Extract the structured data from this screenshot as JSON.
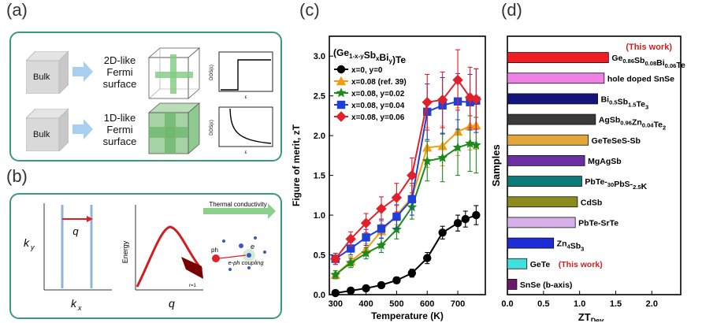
{
  "panels": {
    "a": {
      "label": "(a)",
      "row1": {
        "box": "Bulk",
        "desc1": "2D-like",
        "desc2": "Fermi",
        "desc3": "surface",
        "ylabel": "DOS(ε)",
        "xlabel": "ε"
      },
      "row2": {
        "box": "Bulk",
        "desc1": "1D-like",
        "desc2": "Fermi",
        "desc3": "surface",
        "ylabel": "DOS(ε)",
        "xlabel": "ε"
      }
    },
    "b": {
      "label": "(b)",
      "ky": "k",
      "ky_sub": "y",
      "kx": "k",
      "kx_sub": "x",
      "q1": "q",
      "q2": "q",
      "energy": "Energy",
      "thermal": "Thermal conductivity",
      "ph": "ph",
      "e": "e",
      "coupling": "e-ph coupling",
      "r": "r=1"
    },
    "c": {
      "label": "(c)"
    },
    "d": {
      "label": "(d)"
    }
  },
  "chart_data": [
    {
      "type": "line",
      "title": "(Ge1-x-ySbxBiy)Te",
      "xlabel": "Temperature (K)",
      "ylabel": "Figure of merit, zT",
      "xlim": [
        280,
        790
      ],
      "ylim": [
        0,
        3.25
      ],
      "xticks": [
        300,
        400,
        500,
        600,
        700,
        800
      ],
      "yticks": [
        0.0,
        0.5,
        1.0,
        1.5,
        2.0,
        2.5,
        3.0
      ],
      "legend_position": "top-left",
      "series": [
        {
          "name": "x=0, y=0",
          "color": "#000000",
          "marker": "circle",
          "x": [
            300,
            350,
            400,
            450,
            500,
            550,
            600,
            650,
            700,
            725,
            760
          ],
          "y": [
            0.02,
            0.05,
            0.08,
            0.12,
            0.18,
            0.27,
            0.46,
            0.78,
            0.9,
            0.95,
            1.0
          ],
          "err": [
            0.02,
            0.02,
            0.03,
            0.03,
            0.04,
            0.05,
            0.07,
            0.08,
            0.1,
            0.1,
            0.12
          ]
        },
        {
          "name": "x=0.08  (ref. 39)",
          "color": "#f39c12",
          "marker": "triangle",
          "x": [
            300,
            350,
            400,
            450,
            500,
            550,
            600,
            650,
            700,
            740,
            760
          ],
          "y": [
            0.25,
            0.42,
            0.57,
            0.8,
            1.0,
            1.22,
            1.85,
            1.87,
            2.05,
            2.12,
            2.13
          ],
          "err": [
            0.05,
            0.06,
            0.07,
            0.09,
            0.12,
            0.15,
            0.25,
            0.25,
            0.3,
            0.3,
            0.3
          ]
        },
        {
          "name": "x=0.08, y=0.02",
          "color": "#1e8a1e",
          "marker": "star",
          "x": [
            300,
            350,
            400,
            450,
            500,
            550,
            600,
            650,
            700,
            740,
            760
          ],
          "y": [
            0.25,
            0.4,
            0.52,
            0.62,
            0.82,
            1.1,
            1.68,
            1.72,
            1.85,
            1.9,
            1.88
          ],
          "err": [
            0.05,
            0.06,
            0.07,
            0.09,
            0.12,
            0.15,
            0.25,
            0.3,
            0.35,
            0.35,
            0.35
          ]
        },
        {
          "name": "x=0.08, y=0.04",
          "color": "#1f3fd6",
          "marker": "square",
          "x": [
            300,
            350,
            400,
            450,
            500,
            550,
            600,
            650,
            700,
            740,
            760
          ],
          "y": [
            0.45,
            0.58,
            0.72,
            0.83,
            0.98,
            1.2,
            2.3,
            2.38,
            2.43,
            2.42,
            2.44
          ],
          "err": [
            0.07,
            0.08,
            0.1,
            0.12,
            0.15,
            0.2,
            0.35,
            0.35,
            0.35,
            0.35,
            0.4
          ]
        },
        {
          "name": "x=0.08, y=0.06",
          "color": "#e0202a",
          "marker": "diamond",
          "x": [
            300,
            350,
            400,
            450,
            500,
            550,
            600,
            650,
            700,
            740,
            760
          ],
          "y": [
            0.45,
            0.7,
            0.9,
            1.08,
            1.22,
            1.5,
            2.42,
            2.45,
            2.7,
            2.48,
            2.46
          ],
          "err": [
            0.07,
            0.09,
            0.12,
            0.15,
            0.18,
            0.22,
            0.35,
            0.35,
            0.38,
            0.38,
            0.38
          ]
        }
      ]
    },
    {
      "type": "bar",
      "orientation": "horizontal",
      "xlabel": "ZT",
      "xlabel_sub": "Dev",
      "ylabel": "Samples",
      "xlim": [
        0,
        2.4
      ],
      "xticks": [
        "0.0",
        "0.5",
        "1.0",
        "1.5",
        "2.0"
      ],
      "this_work_note": "(This work)",
      "categories": [
        "Ge0.86Sb0.08Bi0.06Te",
        "hole doped SnSe",
        "Bi0.5Sb1.5Te3",
        "AgSb0.96Zn0.04Te2",
        "GeTeSeS-Sb",
        "MgAgSb",
        "PbTe-30PbS-2.5K",
        "CdSb",
        "PbTe-SrTe",
        "Zn4Sb3",
        "GeTe",
        "SnSe (b-axis)"
      ],
      "values": [
        1.4,
        1.34,
        1.25,
        1.22,
        1.12,
        1.07,
        1.03,
        0.97,
        0.94,
        0.64,
        0.27,
        0.13
      ],
      "colors": [
        "#ef1c24",
        "#ee82e6",
        "#14157a",
        "#3a3a3a",
        "#e2a73a",
        "#6b2fa0",
        "#0f7a7a",
        "#8c8c1e",
        "#d6b0e8",
        "#1d2cd4",
        "#3fe0dc",
        "#6b1a6b"
      ],
      "this_work": [
        true,
        false,
        false,
        false,
        false,
        false,
        false,
        false,
        false,
        false,
        true,
        false
      ]
    }
  ]
}
